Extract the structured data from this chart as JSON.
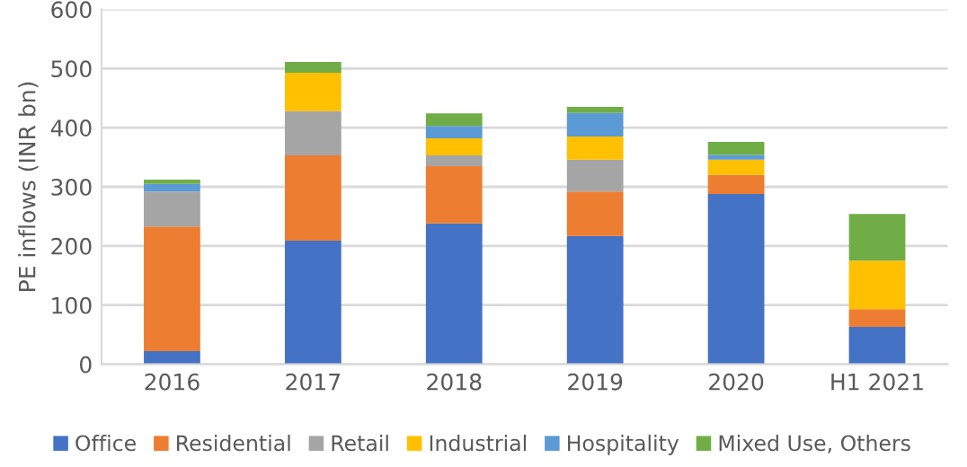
{
  "chart_data": {
    "type": "bar",
    "stacked": true,
    "ylabel": "PE inflows (INR bn)",
    "categories": [
      "2016",
      "2017",
      "2018",
      "2019",
      "2020",
      "H1 2021"
    ],
    "series": [
      {
        "name": "Office",
        "color": "#4472c4",
        "values": [
          22,
          209,
          238,
          217,
          288,
          63
        ]
      },
      {
        "name": "Residential",
        "color": "#ed7d31",
        "values": [
          211,
          144,
          97,
          75,
          32,
          30
        ]
      },
      {
        "name": "Retail",
        "color": "#a5a5a5",
        "values": [
          59,
          75,
          18,
          54,
          0,
          0
        ]
      },
      {
        "name": "Industrial",
        "color": "#ffc000",
        "values": [
          0,
          65,
          29,
          39,
          26,
          82
        ]
      },
      {
        "name": "Hospitality",
        "color": "#5b9bd5",
        "values": [
          13,
          0,
          21,
          40,
          8,
          0
        ]
      },
      {
        "name": "Mixed Use, Others",
        "color": "#70ad47",
        "values": [
          7,
          18,
          21,
          10,
          22,
          79
        ]
      }
    ],
    "ylim": [
      0,
      600
    ],
    "yticks": [
      0,
      100,
      200,
      300,
      400,
      500,
      600
    ],
    "grid": "y",
    "legend": "bottom"
  }
}
